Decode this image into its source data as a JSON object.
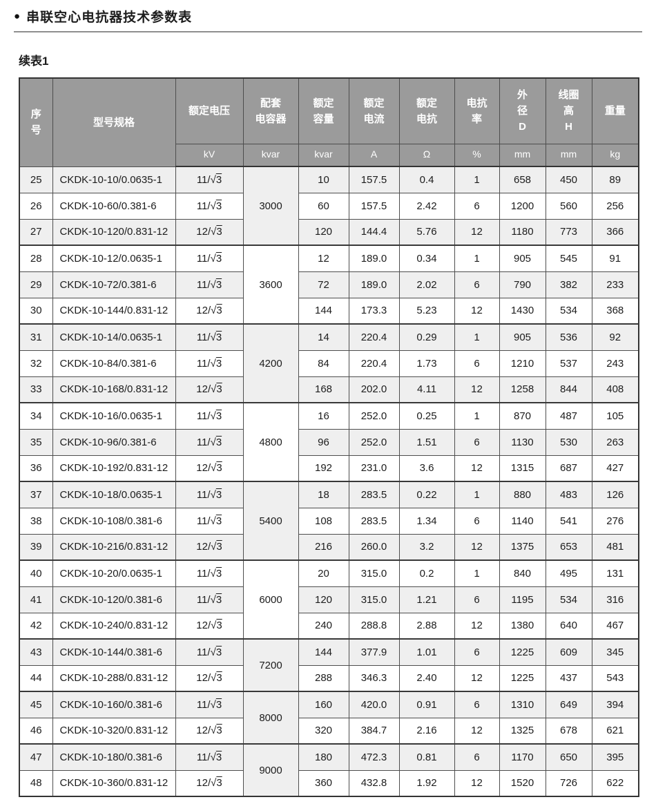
{
  "page": {
    "title": "串联空心电抗器技术参数表",
    "continuation_label": "续表1"
  },
  "colors": {
    "header_bg": "#9b9b9b",
    "row_stripe": "#efefef",
    "border": "#4d4d4d"
  },
  "table": {
    "columns": [
      {
        "label": "序\n号",
        "unit": ""
      },
      {
        "label": "型号规格",
        "unit": ""
      },
      {
        "label": "额定电压",
        "unit": "kV"
      },
      {
        "label": "配套\n电容器",
        "unit": "kvar"
      },
      {
        "label": "额定\n容量",
        "unit": "kvar"
      },
      {
        "label": "额定\n电流",
        "unit": "A"
      },
      {
        "label": "额定\n电抗",
        "unit": "Ω"
      },
      {
        "label": "电抗\n率",
        "unit": "%"
      },
      {
        "label": "外\n径\nD",
        "unit": "mm"
      },
      {
        "label": "线圈\n高\nH",
        "unit": "mm"
      },
      {
        "label": "重量",
        "unit": "kg"
      }
    ],
    "groups": [
      {
        "capacitor_kvar": "3000",
        "rows": [
          {
            "seq": "25",
            "model": "CKDK-10-10/0.0635-1",
            "voltage": "11/√3",
            "capacity": "10",
            "current": "157.5",
            "reactance": "0.4",
            "rate": "1",
            "diameter": "658",
            "height": "450",
            "weight": "89"
          },
          {
            "seq": "26",
            "model": "CKDK-10-60/0.381-6",
            "voltage": "11/√3",
            "capacity": "60",
            "current": "157.5",
            "reactance": "2.42",
            "rate": "6",
            "diameter": "1200",
            "height": "560",
            "weight": "256"
          },
          {
            "seq": "27",
            "model": "CKDK-10-120/0.831-12",
            "voltage": "12/√3",
            "capacity": "120",
            "current": "144.4",
            "reactance": "5.76",
            "rate": "12",
            "diameter": "1180",
            "height": "773",
            "weight": "366"
          }
        ]
      },
      {
        "capacitor_kvar": "3600",
        "rows": [
          {
            "seq": "28",
            "model": "CKDK-10-12/0.0635-1",
            "voltage": "11/√3",
            "capacity": "12",
            "current": "189.0",
            "reactance": "0.34",
            "rate": "1",
            "diameter": "905",
            "height": "545",
            "weight": "91"
          },
          {
            "seq": "29",
            "model": "CKDK-10-72/0.381-6",
            "voltage": "11/√3",
            "capacity": "72",
            "current": "189.0",
            "reactance": "2.02",
            "rate": "6",
            "diameter": "790",
            "height": "382",
            "weight": "233"
          },
          {
            "seq": "30",
            "model": "CKDK-10-144/0.831-12",
            "voltage": "12/√3",
            "capacity": "144",
            "current": "173.3",
            "reactance": "5.23",
            "rate": "12",
            "diameter": "1430",
            "height": "534",
            "weight": "368"
          }
        ]
      },
      {
        "capacitor_kvar": "4200",
        "rows": [
          {
            "seq": "31",
            "model": "CKDK-10-14/0.0635-1",
            "voltage": "11/√3",
            "capacity": "14",
            "current": "220.4",
            "reactance": "0.29",
            "rate": "1",
            "diameter": "905",
            "height": "536",
            "weight": "92"
          },
          {
            "seq": "32",
            "model": "CKDK-10-84/0.381-6",
            "voltage": "11/√3",
            "capacity": "84",
            "current": "220.4",
            "reactance": "1.73",
            "rate": "6",
            "diameter": "1210",
            "height": "537",
            "weight": "243"
          },
          {
            "seq": "33",
            "model": "CKDK-10-168/0.831-12",
            "voltage": "12/√3",
            "capacity": "168",
            "current": "202.0",
            "reactance": "4.11",
            "rate": "12",
            "diameter": "1258",
            "height": "844",
            "weight": "408"
          }
        ]
      },
      {
        "capacitor_kvar": "4800",
        "rows": [
          {
            "seq": "34",
            "model": "CKDK-10-16/0.0635-1",
            "voltage": "11/√3",
            "capacity": "16",
            "current": "252.0",
            "reactance": "0.25",
            "rate": "1",
            "diameter": "870",
            "height": "487",
            "weight": "105"
          },
          {
            "seq": "35",
            "model": "CKDK-10-96/0.381-6",
            "voltage": "11/√3",
            "capacity": "96",
            "current": "252.0",
            "reactance": "1.51",
            "rate": "6",
            "diameter": "1130",
            "height": "530",
            "weight": "263"
          },
          {
            "seq": "36",
            "model": "CKDK-10-192/0.831-12",
            "voltage": "12/√3",
            "capacity": "192",
            "current": "231.0",
            "reactance": "3.6",
            "rate": "12",
            "diameter": "1315",
            "height": "687",
            "weight": "427"
          }
        ]
      },
      {
        "capacitor_kvar": "5400",
        "rows": [
          {
            "seq": "37",
            "model": "CKDK-10-18/0.0635-1",
            "voltage": "11/√3",
            "capacity": "18",
            "current": "283.5",
            "reactance": "0.22",
            "rate": "1",
            "diameter": "880",
            "height": "483",
            "weight": "126"
          },
          {
            "seq": "38",
            "model": "CKDK-10-108/0.381-6",
            "voltage": "11/√3",
            "capacity": "108",
            "current": "283.5",
            "reactance": "1.34",
            "rate": "6",
            "diameter": "1140",
            "height": "541",
            "weight": "276"
          },
          {
            "seq": "39",
            "model": "CKDK-10-216/0.831-12",
            "voltage": "12/√3",
            "capacity": "216",
            "current": "260.0",
            "reactance": "3.2",
            "rate": "12",
            "diameter": "1375",
            "height": "653",
            "weight": "481"
          }
        ]
      },
      {
        "capacitor_kvar": "6000",
        "rows": [
          {
            "seq": "40",
            "model": "CKDK-10-20/0.0635-1",
            "voltage": "11/√3",
            "capacity": "20",
            "current": "315.0",
            "reactance": "0.2",
            "rate": "1",
            "diameter": "840",
            "height": "495",
            "weight": "131"
          },
          {
            "seq": "41",
            "model": "CKDK-10-120/0.381-6",
            "voltage": "11/√3",
            "capacity": "120",
            "current": "315.0",
            "reactance": "1.21",
            "rate": "6",
            "diameter": "1195",
            "height": "534",
            "weight": "316"
          },
          {
            "seq": "42",
            "model": "CKDK-10-240/0.831-12",
            "voltage": "12/√3",
            "capacity": "240",
            "current": "288.8",
            "reactance": "2.88",
            "rate": "12",
            "diameter": "1380",
            "height": "640",
            "weight": "467"
          }
        ]
      },
      {
        "capacitor_kvar": "7200",
        "rows": [
          {
            "seq": "43",
            "model": "CKDK-10-144/0.381-6",
            "voltage": "11/√3",
            "capacity": "144",
            "current": "377.9",
            "reactance": "1.01",
            "rate": "6",
            "diameter": "1225",
            "height": "609",
            "weight": "345"
          },
          {
            "seq": "44",
            "model": "CKDK-10-288/0.831-12",
            "voltage": "12/√3",
            "capacity": "288",
            "current": "346.3",
            "reactance": "2.40",
            "rate": "12",
            "diameter": "1225",
            "height": "437",
            "weight": "543"
          }
        ]
      },
      {
        "capacitor_kvar": "8000",
        "rows": [
          {
            "seq": "45",
            "model": "CKDK-10-160/0.381-6",
            "voltage": "11/√3",
            "capacity": "160",
            "current": "420.0",
            "reactance": "0.91",
            "rate": "6",
            "diameter": "1310",
            "height": "649",
            "weight": "394"
          },
          {
            "seq": "46",
            "model": "CKDK-10-320/0.831-12",
            "voltage": "12/√3",
            "capacity": "320",
            "current": "384.7",
            "reactance": "2.16",
            "rate": "12",
            "diameter": "1325",
            "height": "678",
            "weight": "621"
          }
        ]
      },
      {
        "capacitor_kvar": "9000",
        "rows": [
          {
            "seq": "47",
            "model": "CKDK-10-180/0.381-6",
            "voltage": "11/√3",
            "capacity": "180",
            "current": "472.3",
            "reactance": "0.81",
            "rate": "6",
            "diameter": "1170",
            "height": "650",
            "weight": "395"
          },
          {
            "seq": "48",
            "model": "CKDK-10-360/0.831-12",
            "voltage": "12/√3",
            "capacity": "360",
            "current": "432.8",
            "reactance": "1.92",
            "rate": "12",
            "diameter": "1520",
            "height": "726",
            "weight": "622"
          }
        ]
      }
    ]
  }
}
